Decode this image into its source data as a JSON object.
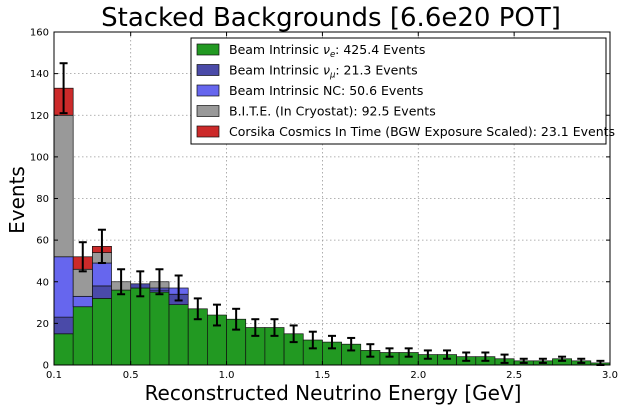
{
  "chart_data": {
    "type": "bar",
    "stacked": true,
    "title": "Stacked Backgrounds [6.6e20 POT]",
    "xlabel": "Reconstructed Neutrino Energy [GeV]",
    "ylabel": "Events",
    "xlim": [
      0.1,
      3.0
    ],
    "ylim": [
      0,
      160
    ],
    "grid": true,
    "legend_position": "top-right",
    "x_ticks": [
      0.1,
      0.5,
      1.0,
      1.5,
      2.0,
      2.5,
      3.0
    ],
    "x_tick_labels": [
      "0.1",
      "0.5",
      "1.0",
      "1.5",
      "2.0",
      "2.5",
      "3.0"
    ],
    "y_ticks": [
      0,
      20,
      40,
      60,
      80,
      100,
      120,
      140,
      160
    ],
    "y_tick_labels": [
      "0",
      "20",
      "40",
      "60",
      "80",
      "100",
      "120",
      "140",
      "160"
    ],
    "bin_edges": [
      0.1,
      0.2,
      0.3,
      0.4,
      0.5,
      0.6,
      0.7,
      0.8,
      0.9,
      1.0,
      1.1,
      1.2,
      1.3,
      1.4,
      1.5,
      1.6,
      1.7,
      1.8,
      1.9,
      2.0,
      2.1,
      2.2,
      2.3,
      2.4,
      2.5,
      2.6,
      2.7,
      2.8,
      2.9,
      3.0
    ],
    "series": [
      {
        "name": "Beam Intrinsic",
        "subscript": "e",
        "suffix": ": 425.4 Events",
        "color": "#229922",
        "values": [
          15,
          28,
          32,
          36,
          37,
          35,
          29,
          27,
          24,
          22,
          18,
          18,
          15,
          12,
          11,
          10,
          7,
          6,
          6,
          5,
          5,
          4,
          4,
          3,
          2,
          2,
          3,
          2,
          1
        ]
      },
      {
        "name": "Beam Intrinsic",
        "subscript": "μ",
        "suffix": ": 21.3 Events",
        "color": "#4a4aa8",
        "values": [
          8,
          0,
          6,
          0,
          2,
          1,
          5,
          0,
          0,
          0,
          0,
          0,
          0,
          0,
          0,
          0,
          0,
          0,
          0,
          0,
          0,
          0,
          0,
          0,
          0,
          0,
          0,
          0,
          0
        ]
      },
      {
        "name": "Beam Intrinsic NC: 50.6 Events",
        "color": "#6666ee",
        "values": [
          29,
          5,
          11,
          0,
          0,
          1,
          3,
          0,
          0,
          0,
          0,
          0,
          0,
          0,
          0,
          0,
          0,
          0,
          0,
          0,
          0,
          0,
          0,
          0,
          0,
          0,
          0,
          0,
          0
        ]
      },
      {
        "name": "B.I.T.E. (In Cryostat): 92.5 Events",
        "color": "#999999",
        "values": [
          68,
          13,
          5,
          4,
          0,
          3,
          0,
          0,
          0,
          0,
          0,
          0,
          0,
          0,
          0,
          0,
          0,
          0,
          0,
          0,
          0,
          0,
          0,
          0,
          0,
          0,
          0,
          0,
          0
        ]
      },
      {
        "name": "Corsika Cosmics In Time (BGW Exposure Scaled): 23.1 Events",
        "color": "#cc2a2a",
        "values": [
          13,
          6,
          3,
          0,
          0,
          0,
          0,
          0,
          0,
          0,
          0,
          0,
          0,
          0,
          0,
          0,
          0,
          0,
          0,
          0,
          0,
          0,
          0,
          0,
          0,
          0,
          0,
          0,
          0
        ]
      }
    ],
    "error_bars": [
      12,
      7,
      8,
      6,
      6,
      6,
      6,
      5,
      5,
      5,
      4,
      4,
      4,
      4,
      3,
      3,
      3,
      2,
      2,
      2,
      2,
      2,
      2,
      2,
      1,
      1,
      1,
      1,
      1
    ]
  }
}
